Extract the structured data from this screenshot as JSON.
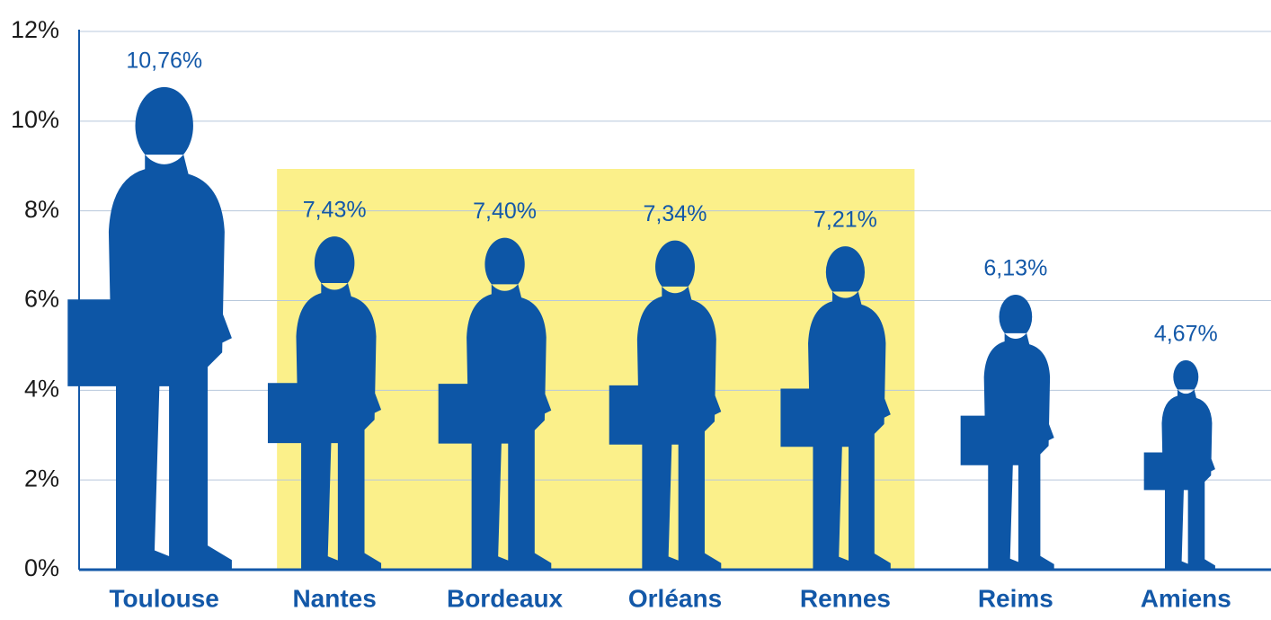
{
  "chart_data": {
    "type": "pictograph",
    "categories": [
      "Toulouse",
      "Nantes",
      "Bordeaux",
      "Orléans",
      "Rennes",
      "Reims",
      "Amiens"
    ],
    "values": [
      10.76,
      7.43,
      7.4,
      7.34,
      7.21,
      6.13,
      4.67
    ],
    "value_labels": [
      "10,76%",
      "7,43%",
      "7,40%",
      "7,34%",
      "7,21%",
      "6,13%",
      "4,67%"
    ],
    "color": "#0d56a6",
    "ylim": [
      0,
      12
    ],
    "yticks": [
      {
        "value": 0,
        "label": "0%"
      },
      {
        "value": 2,
        "label": "2%"
      },
      {
        "value": 4,
        "label": "4%"
      },
      {
        "value": 6,
        "label": "6%"
      },
      {
        "value": 8,
        "label": "8%"
      },
      {
        "value": 10,
        "label": "10%"
      },
      {
        "value": 12,
        "label": "12%"
      }
    ],
    "grid": true
  }
}
